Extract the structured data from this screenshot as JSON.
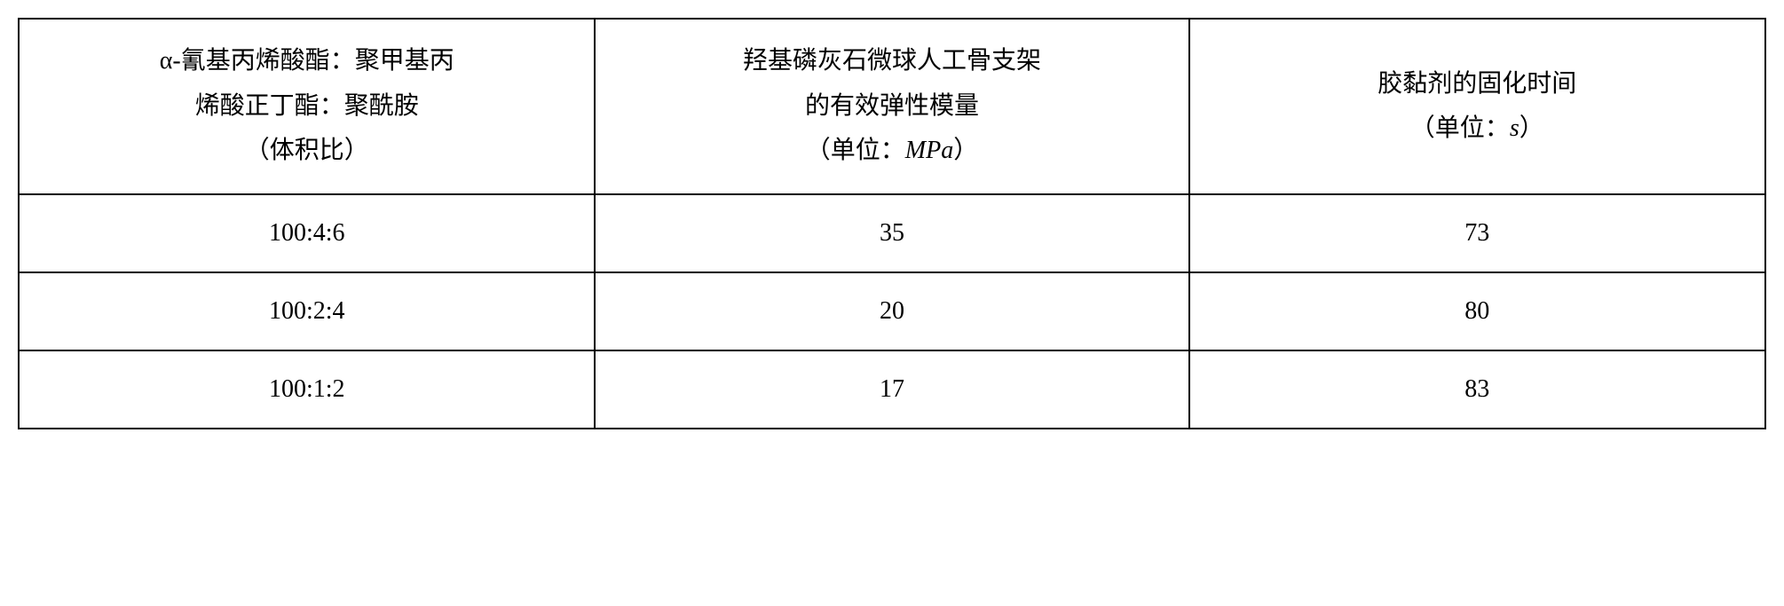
{
  "table": {
    "columns": [
      {
        "line1": "α-氰基丙烯酸酯：聚甲基丙",
        "line2": "烯酸正丁酯：聚酰胺",
        "line3_prefix": "（体积比）",
        "unit": ""
      },
      {
        "line1": "羟基磷灰石微球人工骨支架",
        "line2": "的有效弹性模量",
        "line3_prefix": "（单位：",
        "unit": "MPa",
        "line3_suffix": "）"
      },
      {
        "line1": "胶黏剂的固化时间",
        "line2_prefix": "（单位：",
        "unit": "s",
        "line2_suffix": "）"
      }
    ],
    "rows": [
      [
        "100:4:6",
        "35",
        "73"
      ],
      [
        "100:2:4",
        "20",
        "80"
      ],
      [
        "100:1:2",
        "17",
        "83"
      ]
    ],
    "border_color": "#000000",
    "background_color": "#ffffff",
    "header_fontsize": 28,
    "cell_fontsize": 28,
    "col_widths": [
      "33%",
      "34%",
      "33%"
    ]
  }
}
